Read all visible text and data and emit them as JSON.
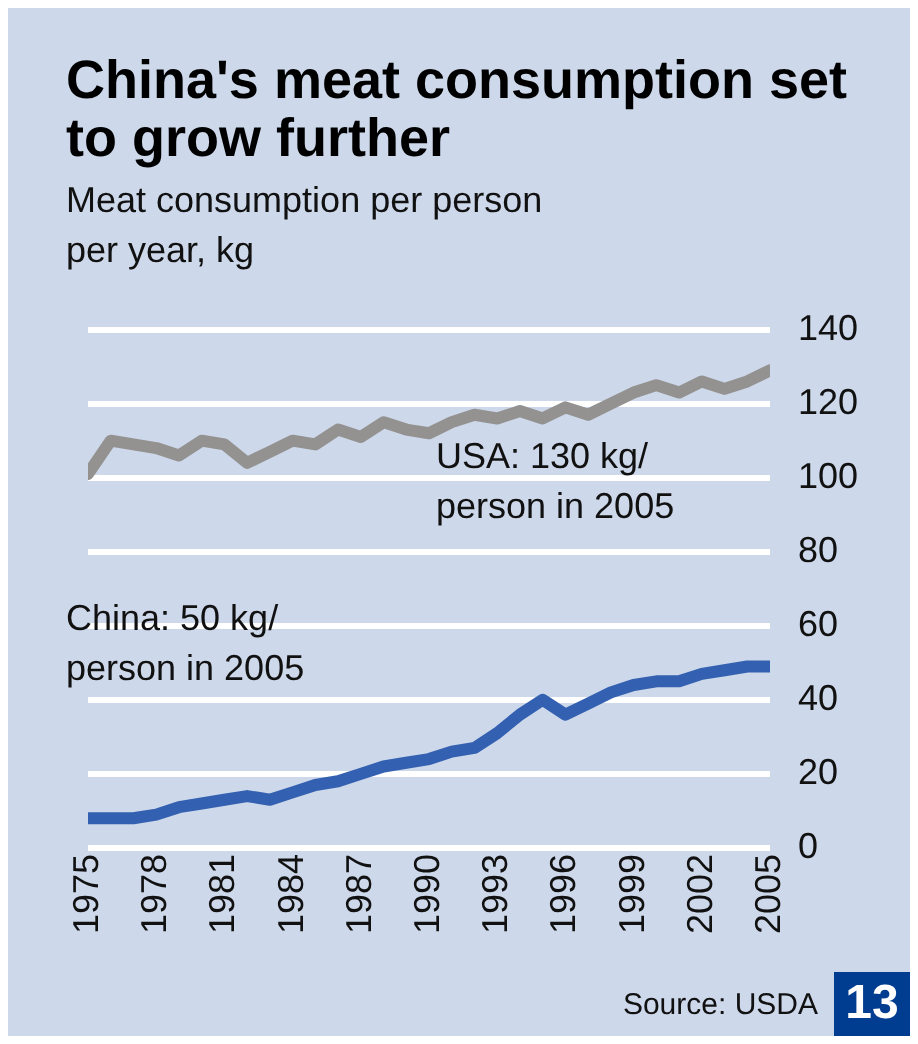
{
  "chart_data": {
    "type": "line",
    "title": "China's meat consumption set to grow further",
    "ylabel": "Meat consumption per person per year, kg",
    "x": [
      1975,
      1976,
      1977,
      1978,
      1979,
      1980,
      1981,
      1982,
      1983,
      1984,
      1985,
      1986,
      1987,
      1988,
      1989,
      1990,
      1991,
      1992,
      1993,
      1994,
      1995,
      1996,
      1997,
      1998,
      1999,
      2000,
      2001,
      2002,
      2003,
      2004,
      2005
    ],
    "series": [
      {
        "color": "#939290",
        "values": [
          101,
          110,
          109,
          108,
          106,
          110,
          109,
          104,
          107,
          110,
          109,
          113,
          111,
          115,
          113,
          112,
          115,
          117,
          116,
          118,
          116,
          119,
          117,
          120,
          123,
          125,
          123,
          126,
          124,
          126,
          129
        ]
      },
      {
        "color": "#3360b0",
        "values": [
          8,
          8,
          8,
          9,
          11,
          12,
          13,
          14,
          13,
          15,
          17,
          18,
          20,
          22,
          23,
          24,
          26,
          27,
          31,
          36,
          40,
          36,
          39,
          42,
          44,
          45,
          45,
          47,
          48,
          49,
          49
        ]
      }
    ],
    "xlim": [
      1975,
      2005
    ],
    "xticks": [
      1975,
      1978,
      1981,
      1984,
      1987,
      1990,
      1993,
      1996,
      1999,
      2002,
      2005
    ],
    "ylim": [
      0,
      140
    ],
    "yticks": [
      0,
      20,
      40,
      60,
      80,
      100,
      120,
      140
    ],
    "grid": "y",
    "marker": "none",
    "line_style": "solid",
    "annotations": [
      "USA: 130 kg/\nperson in 2005",
      "China: 50 kg/\nperson in 2005",
      "Source: USDA",
      "13"
    ]
  }
}
